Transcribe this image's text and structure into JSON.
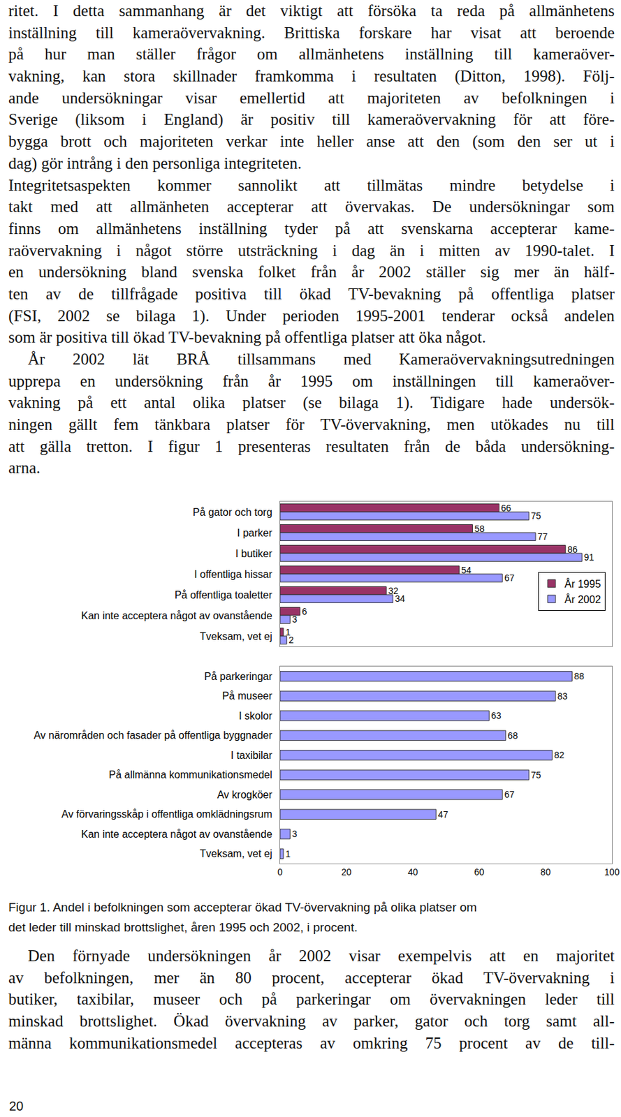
{
  "text_before": [
    [
      "ritet. I detta sammanhang är det viktigt att försöka ta reda på allmänhetens",
      "inställning till kameraövervakning. Brittiska forskare har visat att beroende",
      "på hur man ställer frågor om allmänhetens inställning till kameraöver-",
      "vakning, kan stora skillnader framkomma i resultaten (Ditton, 1998). Följ-",
      "ande undersökningar visar emellertid att majoriteten av befolkningen i",
      "Sverige (liksom i England) är positiv till kameraövervakning för att före-",
      "bygga brott och majoriteten verkar inte heller anse att den (som den ser ut i",
      "dag) gör intrång i den personliga integriteten."
    ],
    [
      "Integritetsaspekten kommer sannolikt att tillmätas mindre betydelse i",
      "takt med att allmänheten accepterar att övervakas. De undersökningar som",
      "finns om allmänhetens inställning tyder på att svenskarna accepterar kame-",
      "raövervakning i något större utsträckning i dag än i mitten av 1990-talet. I",
      "en undersökning bland svenska folket från år 2002 ställer sig mer än hälf-",
      "ten av de tillfrågade positiva till ökad TV-bevakning på offentliga platser",
      "(FSI, 2002 se bilaga 1). Under perioden 1995-2001 tenderar också andelen",
      "som är positiva till ökad TV-bevakning på offentliga platser att öka något."
    ],
    [
      "År 2002 lät BRÅ tillsammans med Kameraövervakningsutredningen",
      "upprepa en undersökning från år 1995 om inställningen till kameraöver-",
      "vakning på ett antal olika platser (se bilaga 1). Tidigare hade undersök-",
      "ningen gällt fem tänkbara platser för TV-övervakning, men utökades nu till",
      "att gälla tretton. I figur 1 presenteras resultaten från de båda undersökning-",
      "arna."
    ]
  ],
  "chart_data": [
    {
      "type": "bar",
      "orientation": "horizontal",
      "categories": [
        "På gator och torg",
        "I parker",
        "I butiker",
        "I offentliga hissar",
        "På offentliga toaletter",
        "Kan inte acceptera något av ovanstående",
        "Tveksam, vet ej"
      ],
      "series": [
        {
          "name": "År 1995",
          "color": "#993366",
          "values": [
            66,
            58,
            86,
            54,
            32,
            6,
            1
          ]
        },
        {
          "name": "År 2002",
          "color": "#9999FF",
          "values": [
            75,
            77,
            91,
            67,
            34,
            3,
            2
          ]
        }
      ],
      "xlim": [
        0,
        100
      ],
      "tick_labels": "y",
      "data_labels": true,
      "legend": "right",
      "grid": false
    },
    {
      "type": "bar",
      "orientation": "horizontal",
      "categories": [
        "På parkeringar",
        "På museer",
        "I skolor",
        "Av närområden och fasader på offentliga byggnader",
        "I taxibilar",
        "På allmänna kommunikationsmedel",
        "Av krogköer",
        "Av förvaringsskåp i offentliga omklädningsrum",
        "Kan inte acceptera något av ovanstående",
        "Tveksam, vet ej"
      ],
      "values": [
        88,
        83,
        63,
        68,
        82,
        75,
        67,
        47,
        3,
        1
      ],
      "color": "#9999FF",
      "xlim": [
        0,
        100
      ],
      "xticks": [
        0,
        20,
        40,
        60,
        80,
        100
      ],
      "data_labels": true,
      "grid": false
    }
  ],
  "caption": [
    "Figur 1. Andel i befolkningen som accepterar ökad TV-övervakning på olika platser om",
    "det leder till minskad brottslighet, åren 1995 och 2002, i procent."
  ],
  "text_after": [
    [
      "Den förnyade undersökningen år 2002 visar exempelvis att en majoritet",
      "av befolkningen, mer än 80 procent, accepterar ökad TV-övervakning i",
      "butiker, taxibilar, museer och på parkeringar om övervakningen leder till",
      "minskad brottslighet. Ökad övervakning av parker, gator och torg samt all-",
      "männa kommunikationsmedel accepteras av omkring 75 procent av de till-"
    ]
  ],
  "page_number": 20
}
